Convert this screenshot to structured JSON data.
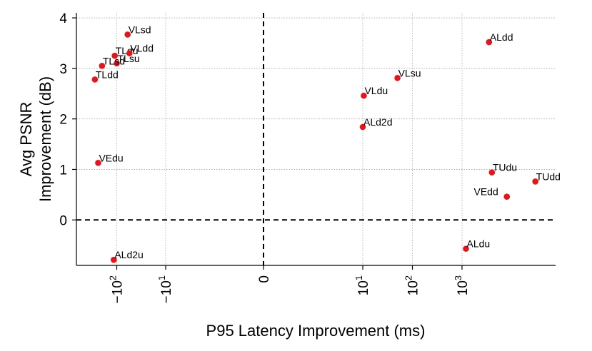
{
  "chart_data": {
    "type": "scatter",
    "title": "",
    "xlabel": "P95 Latency Improvement (ms)",
    "ylabel_lines": [
      "Avg PSNR",
      "Improvement (dB)"
    ],
    "xscale": "symlog",
    "ylim": [
      -0.9,
      4.1
    ],
    "y_ticks": [
      {
        "v": 0,
        "label": "0"
      },
      {
        "v": 1,
        "label": "1"
      },
      {
        "v": 2,
        "label": "2"
      },
      {
        "v": 3,
        "label": "3"
      },
      {
        "v": 4,
        "label": "4"
      }
    ],
    "x_ticks": [
      {
        "v": -100,
        "base": "−10",
        "exp": "2"
      },
      {
        "v": -10,
        "base": "−10",
        "exp": "1"
      },
      {
        "v": 0,
        "base": "0",
        "exp": ""
      },
      {
        "v": 10,
        "base": "10",
        "exp": "1"
      },
      {
        "v": 100,
        "base": "10",
        "exp": "2"
      },
      {
        "v": 1000,
        "base": "10",
        "exp": "3"
      }
    ],
    "marker_color": "#e8141b",
    "points": [
      {
        "label": "VLsd",
        "x": -60,
        "y": 3.67
      },
      {
        "label": "TLdu",
        "x": -110,
        "y": 3.25
      },
      {
        "label": "VLdd",
        "x": -55,
        "y": 3.3
      },
      {
        "label": "TLsu",
        "x": -100,
        "y": 3.1
      },
      {
        "label": "TLsd",
        "x": -200,
        "y": 3.05
      },
      {
        "label": "TLdd",
        "x": -280,
        "y": 2.78
      },
      {
        "label": "VEdu",
        "x": -240,
        "y": 1.13
      },
      {
        "label": "ALd2u",
        "x": -115,
        "y": -0.79
      },
      {
        "label": "ALdd",
        "x": 3500,
        "y": 3.52
      },
      {
        "label": "VLsu",
        "x": 50,
        "y": 2.81
      },
      {
        "label": "VLdu",
        "x": 10.5,
        "y": 2.46
      },
      {
        "label": "ALd2d",
        "x": 10,
        "y": 1.84
      },
      {
        "label": "TUdu",
        "x": 4000,
        "y": 0.94
      },
      {
        "label": "VEdd",
        "x": 8000,
        "y": 0.46
      },
      {
        "label": "TUdd",
        "x": 30000,
        "y": 0.76
      },
      {
        "label": "ALdu",
        "x": 1200,
        "y": -0.57
      }
    ]
  }
}
